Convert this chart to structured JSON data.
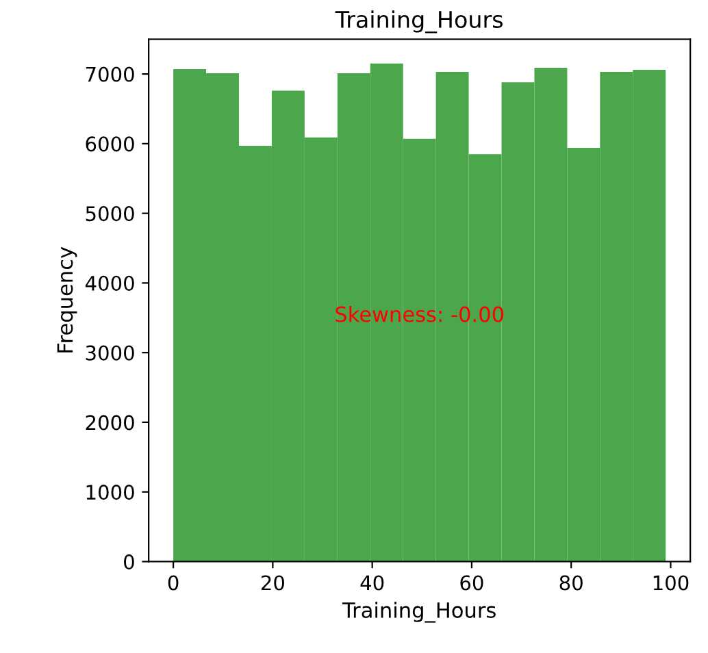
{
  "chart_data": {
    "type": "histogram",
    "title": "Training_Hours",
    "xlabel": "Training_Hours",
    "ylabel": "Frequency",
    "bins": [
      0,
      6.6,
      13.2,
      19.8,
      26.4,
      33,
      39.6,
      46.2,
      52.8,
      59.4,
      66,
      72.6,
      79.2,
      85.8,
      92.4,
      99
    ],
    "values": [
      7070,
      7010,
      5970,
      6760,
      6090,
      7010,
      7150,
      6070,
      7030,
      5850,
      6880,
      7090,
      5940,
      7030,
      7060
    ],
    "color": "#4ca64c",
    "xlim": [
      -4.95,
      103.95
    ],
    "xticks": [
      0,
      20,
      40,
      60,
      80,
      100
    ],
    "ylim": [
      0,
      7500
    ],
    "yticks": [
      0,
      1000,
      2000,
      3000,
      4000,
      5000,
      6000,
      7000
    ],
    "annotations": [
      "Skewness: -0.00"
    ],
    "grid": false
  }
}
